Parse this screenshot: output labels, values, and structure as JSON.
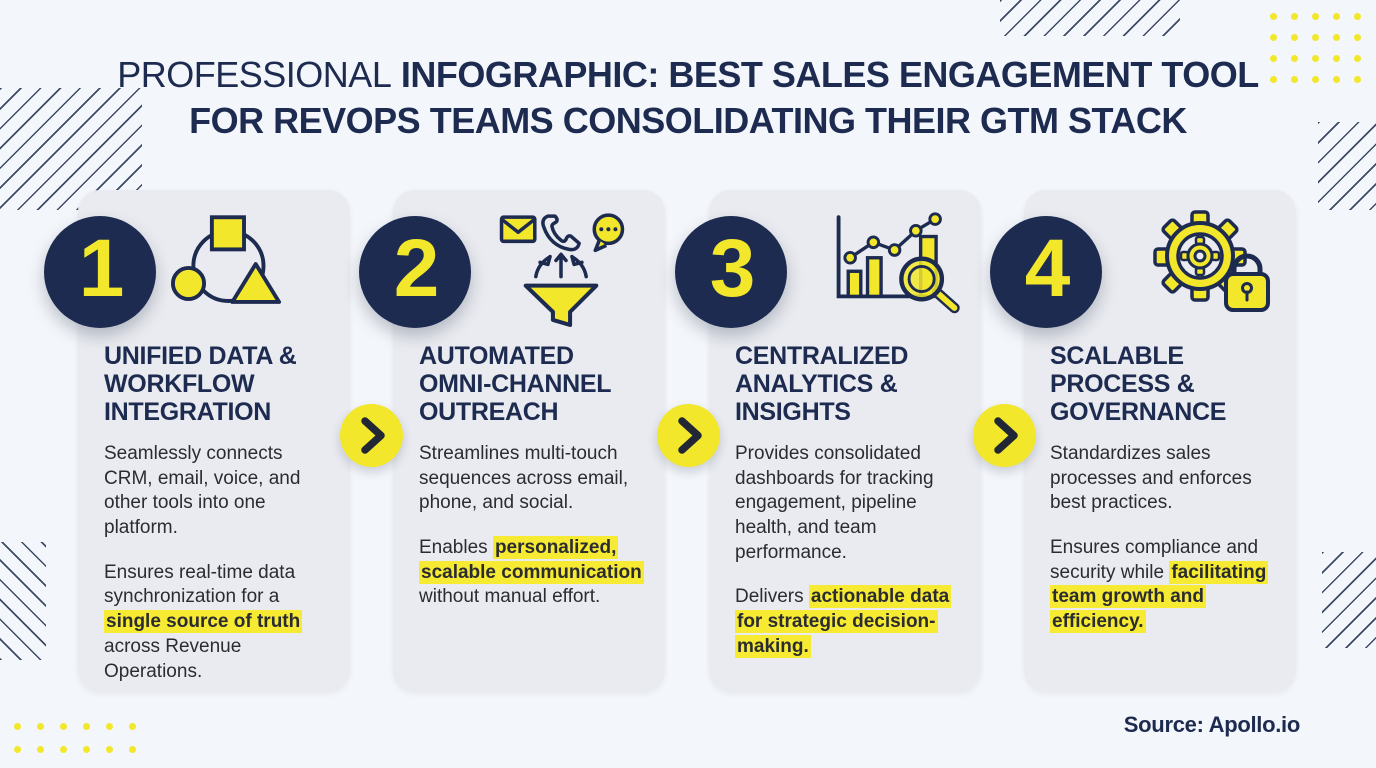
{
  "header": {
    "title_prefix": "PROFESSIONAL",
    "title_rest": " INFOGRAPHIC: BEST SALES ENGAGEMENT TOOL",
    "title_line2": "FOR REVOPS TEAMS CONSOLIDATING THEIR GTM STACK"
  },
  "colors": {
    "navy": "#1e2b50",
    "yellow": "#f2e72b",
    "highlight": "#f6ea33",
    "card_bg": "#e9ebf0",
    "page_bg": "#f3f6fa",
    "body_text": "#2b2c31"
  },
  "cards": [
    {
      "number": "1",
      "icon": "connected-shapes-icon",
      "title": "UNIFIED DATA & WORKFLOW INTEGRATION",
      "paragraphs": [
        [
          {
            "text": "Seamlessly connects CRM, email, voice, and other tools into one platform.",
            "highlight": false
          }
        ],
        [
          {
            "text": "Ensures real-time data synchronization for a ",
            "highlight": false
          },
          {
            "text": "single source of truth",
            "highlight": true
          },
          {
            "text": " across Revenue Operations.",
            "highlight": false
          }
        ]
      ]
    },
    {
      "number": "2",
      "icon": "funnel-channels-icon",
      "title": "AUTOMATED OMNI-CHANNEL OUTREACH",
      "paragraphs": [
        [
          {
            "text": "Streamlines multi-touch sequences across email, phone, and social.",
            "highlight": false
          }
        ],
        [
          {
            "text": "Enables ",
            "highlight": false
          },
          {
            "text": "personalized, scalable communication",
            "highlight": true
          },
          {
            "text": " without manual effort.",
            "highlight": false
          }
        ]
      ]
    },
    {
      "number": "3",
      "icon": "analytics-magnifier-icon",
      "title": "CENTRALIZED ANALYTICS & INSIGHTS",
      "paragraphs": [
        [
          {
            "text": "Provides consolidated dashboards for tracking engagement, pipeline health, and team performance.",
            "highlight": false
          }
        ],
        [
          {
            "text": "Delivers ",
            "highlight": false
          },
          {
            "text": "actionable data for strategic decision-making.",
            "highlight": true
          }
        ]
      ]
    },
    {
      "number": "4",
      "icon": "gear-lock-icon",
      "title": "SCALABLE PROCESS & GOVERNANCE",
      "paragraphs": [
        [
          {
            "text": "Standardizes sales processes and enforces best practices.",
            "highlight": false
          }
        ],
        [
          {
            "text": "Ensures compliance and security while ",
            "highlight": false
          },
          {
            "text": "facilitating team growth and efficiency.",
            "highlight": true
          }
        ]
      ]
    }
  ],
  "connectors": {
    "icon": "chevron-right-icon",
    "count": 3
  },
  "decorations": {
    "topRightDots": {
      "rows": 4,
      "cols": 5
    },
    "bottomLeftDots": {
      "rows": 2,
      "cols": 6
    }
  },
  "footer": {
    "source": "Source: Apollo.io"
  }
}
